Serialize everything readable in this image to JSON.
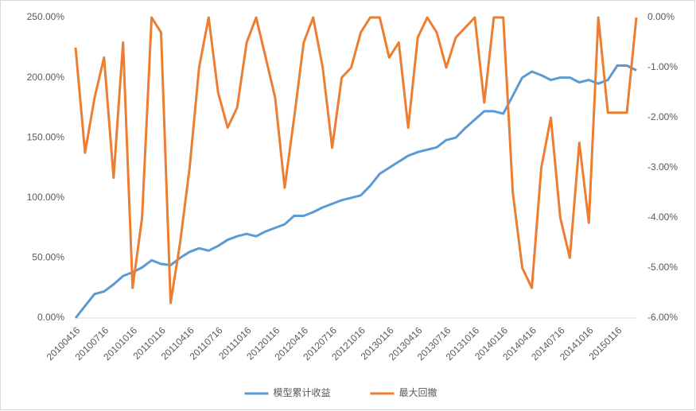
{
  "chart_data": {
    "type": "line",
    "categories": [
      "20100416",
      null,
      null,
      "20100716",
      null,
      null,
      "20101016",
      null,
      null,
      "20110116",
      null,
      null,
      "20110416",
      null,
      null,
      "20110716",
      null,
      null,
      "20111016",
      null,
      null,
      "20120116",
      null,
      null,
      "20120416",
      null,
      null,
      "20120716",
      null,
      null,
      "20121016",
      null,
      null,
      "20130116",
      null,
      null,
      "20130416",
      null,
      null,
      "20130716",
      null,
      null,
      "20131016",
      null,
      null,
      "20140116",
      null,
      null,
      "20140416",
      null,
      null,
      "20140716",
      null,
      null,
      "20141016",
      null,
      null,
      "20150116",
      null,
      null
    ],
    "series": [
      {
        "name": "模型累计收益",
        "color": "#5b9bd5",
        "axis": "y",
        "values": [
          0,
          10,
          20,
          22,
          28,
          35,
          38,
          42,
          48,
          45,
          44,
          50,
          55,
          58,
          56,
          60,
          65,
          68,
          70,
          68,
          72,
          75,
          78,
          85,
          85,
          88,
          92,
          95,
          98,
          100,
          102,
          110,
          120,
          125,
          130,
          135,
          138,
          140,
          142,
          148,
          150,
          158,
          165,
          172,
          172,
          170,
          185,
          200,
          205,
          202,
          198,
          200,
          200,
          196,
          198,
          195,
          198,
          210,
          210,
          206
        ]
      },
      {
        "name": "最大回撤",
        "color": "#ed7d31",
        "axis": "y2",
        "values": [
          -0.6,
          -2.7,
          -1.6,
          -0.8,
          -3.2,
          -0.5,
          -5.4,
          -4.0,
          0,
          -0.3,
          -5.7,
          -4.5,
          -3.0,
          -1.0,
          0,
          -1.5,
          -2.2,
          -1.8,
          -0.5,
          0,
          -0.8,
          -1.6,
          -3.4,
          -2.0,
          -0.5,
          0,
          -1.0,
          -2.6,
          -1.2,
          -1.0,
          -0.3,
          0,
          0,
          -0.8,
          -0.5,
          -2.2,
          -0.4,
          0,
          -0.3,
          -1.0,
          -0.4,
          -0.2,
          0,
          -1.7,
          0,
          0,
          -3.5,
          -5.0,
          -5.4,
          -3.0,
          -2.0,
          -4.0,
          -4.8,
          -2.5,
          -4.1,
          0,
          -1.9,
          -1.9,
          -1.9,
          0
        ]
      }
    ],
    "ylim": [
      0,
      250
    ],
    "yticks": [
      {
        "value": 0,
        "label": "0.00%"
      },
      {
        "value": 50,
        "label": "50.00%"
      },
      {
        "value": 100,
        "label": "100.00%"
      },
      {
        "value": 150,
        "label": "150.00%"
      },
      {
        "value": 200,
        "label": "200.00%"
      },
      {
        "value": 250,
        "label": "250.00%"
      }
    ],
    "y2lim": [
      -6,
      0
    ],
    "y2ticks": [
      {
        "value": -6,
        "label": "-6.00%"
      },
      {
        "value": -5,
        "label": "-5.00%"
      },
      {
        "value": -4,
        "label": "-4.00%"
      },
      {
        "value": -3,
        "label": "-3.00%"
      },
      {
        "value": -2,
        "label": "-2.00%"
      },
      {
        "value": -1,
        "label": "-1.00%"
      },
      {
        "value": 0,
        "label": "0.00%"
      }
    ],
    "grid": false,
    "legend": "bottom"
  }
}
